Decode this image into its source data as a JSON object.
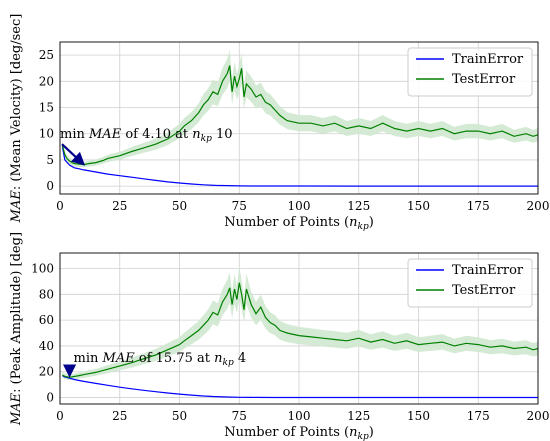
{
  "colors": {
    "train": "#0000ff",
    "test": "#008000",
    "band": "#cfe8cf",
    "grid": "#d0d0d0",
    "arrow": "#00008b"
  },
  "chart_data": [
    {
      "type": "line",
      "xlabel": "Number of Points (n_kp)",
      "ylabel": "MAE: (Mean Velocity) [deg/sec]",
      "xlim": [
        0,
        200
      ],
      "ylim": [
        -1.5,
        27.5
      ],
      "xticks": [
        "0",
        "25",
        "50",
        "75",
        "100",
        "125",
        "150",
        "175",
        "200"
      ],
      "yticks": [
        "0",
        "5",
        "10",
        "15",
        "20",
        "25"
      ],
      "grid": true,
      "legend_position": "top-right",
      "annotation": {
        "text": "min MAE of 4.10 at n_kp 10",
        "x": 10,
        "y": 4.1,
        "text_x": 0,
        "text_y": 8
      },
      "series": [
        {
          "name": "TrainError",
          "x": [
            1,
            2,
            4,
            6,
            8,
            10,
            15,
            20,
            25,
            30,
            35,
            40,
            45,
            50,
            55,
            60,
            65,
            70,
            75,
            80,
            90,
            100,
            125,
            150,
            175,
            200
          ],
          "values": [
            7.5,
            5.0,
            4.0,
            3.5,
            3.3,
            3.1,
            2.7,
            2.3,
            2.0,
            1.7,
            1.4,
            1.1,
            0.8,
            0.6,
            0.4,
            0.25,
            0.15,
            0.1,
            0.05,
            0.03,
            0.02,
            0.02,
            0.01,
            0.01,
            0.01,
            0.01
          ]
        },
        {
          "name": "TestError",
          "x": [
            1,
            2,
            3,
            4,
            5,
            6,
            8,
            10,
            12,
            15,
            18,
            20,
            25,
            30,
            35,
            40,
            45,
            50,
            52,
            55,
            58,
            60,
            62,
            64,
            66,
            68,
            70,
            71,
            72,
            73,
            74,
            75,
            76,
            77,
            78,
            80,
            82,
            84,
            86,
            88,
            90,
            92,
            95,
            100,
            105,
            110,
            115,
            120,
            125,
            130,
            135,
            140,
            145,
            150,
            155,
            160,
            165,
            170,
            175,
            180,
            185,
            190,
            195,
            198,
            200
          ],
          "values": [
            7.8,
            6.0,
            5.2,
            4.8,
            4.5,
            4.3,
            4.2,
            4.1,
            4.3,
            4.5,
            4.9,
            5.3,
            5.8,
            6.6,
            7.3,
            8.0,
            9.0,
            10.5,
            11.5,
            12.5,
            14.0,
            15.5,
            16.5,
            18.0,
            17.5,
            20.0,
            21.5,
            23.0,
            18.0,
            21.0,
            19.0,
            20.5,
            22.5,
            17.0,
            19.5,
            18.5,
            17.0,
            17.5,
            16.0,
            15.5,
            14.5,
            13.5,
            12.5,
            12.0,
            12.0,
            11.5,
            12.0,
            11.0,
            11.5,
            11.0,
            12.0,
            11.0,
            10.5,
            11.0,
            10.5,
            11.0,
            10.0,
            10.5,
            10.5,
            10.0,
            10.5,
            9.5,
            10.0,
            9.5,
            9.8
          ]
        }
      ]
    },
    {
      "type": "line",
      "xlabel": "Number of Points (n_kp)",
      "ylabel": "MAE: (Peak Amplitude) [deg]",
      "xlim": [
        0,
        200
      ],
      "ylim": [
        -5,
        112
      ],
      "xticks": [
        "0",
        "25",
        "50",
        "75",
        "100",
        "125",
        "150",
        "175",
        "200"
      ],
      "yticks": [
        "0",
        "20",
        "40",
        "60",
        "80",
        "100"
      ],
      "grid": true,
      "legend_position": "top-right",
      "annotation": {
        "text": "min MAE of 15.75 at n_kp 4",
        "x": 4,
        "y": 15.75,
        "text_x": 4,
        "text_y": 29
      },
      "series": [
        {
          "name": "TrainError",
          "x": [
            1,
            2,
            4,
            6,
            8,
            10,
            15,
            20,
            25,
            30,
            35,
            40,
            45,
            50,
            55,
            60,
            65,
            70,
            75,
            80,
            90,
            100,
            125,
            150,
            175,
            200
          ],
          "values": [
            17.0,
            16.0,
            15.0,
            14.0,
            13.2,
            12.5,
            11.0,
            9.5,
            8.0,
            6.8,
            5.6,
            4.5,
            3.5,
            2.7,
            1.9,
            1.2,
            0.7,
            0.4,
            0.2,
            0.1,
            0.05,
            0.05,
            0.03,
            0.03,
            0.03,
            0.03
          ]
        },
        {
          "name": "TestError",
          "x": [
            1,
            2,
            3,
            4,
            5,
            6,
            8,
            10,
            12,
            15,
            18,
            20,
            25,
            30,
            35,
            40,
            45,
            50,
            52,
            55,
            58,
            60,
            62,
            64,
            66,
            68,
            70,
            71,
            72,
            73,
            74,
            75,
            76,
            77,
            78,
            80,
            82,
            84,
            86,
            88,
            90,
            92,
            95,
            100,
            105,
            110,
            115,
            120,
            125,
            130,
            135,
            140,
            145,
            150,
            155,
            160,
            165,
            170,
            175,
            180,
            185,
            190,
            195,
            198,
            200
          ],
          "values": [
            17.5,
            16.5,
            16.0,
            15.75,
            16.0,
            16.3,
            17.0,
            17.8,
            18.5,
            19.5,
            21.0,
            22.0,
            24.5,
            27.0,
            30.0,
            33.0,
            37.0,
            41.0,
            44.0,
            48.0,
            52.0,
            56.0,
            60.0,
            66.0,
            64.0,
            74.0,
            80.0,
            85.0,
            72.0,
            84.0,
            76.0,
            89.0,
            80.0,
            68.0,
            84.0,
            72.0,
            65.0,
            70.0,
            62.0,
            58.0,
            56.0,
            52.0,
            50.0,
            48.0,
            47.0,
            46.0,
            45.0,
            44.0,
            46.0,
            43.0,
            45.0,
            42.0,
            44.0,
            41.0,
            42.0,
            43.0,
            40.0,
            42.0,
            41.0,
            39.0,
            40.0,
            38.0,
            39.0,
            37.0,
            38.0
          ]
        }
      ]
    }
  ]
}
